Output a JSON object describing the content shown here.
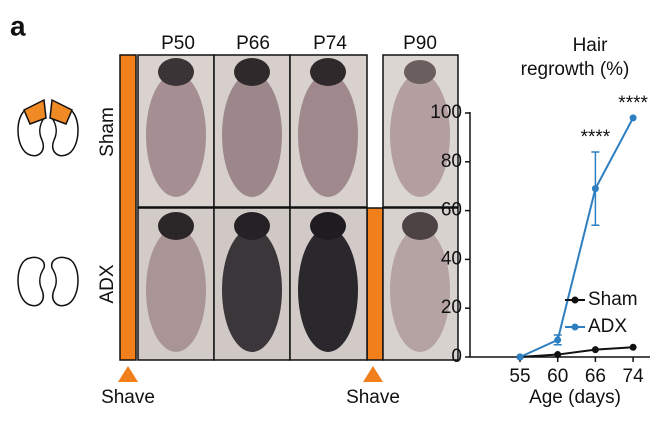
{
  "panel_label": "a",
  "columns": [
    "P50",
    "P66",
    "P74",
    "P90"
  ],
  "rows": [
    "Sham",
    "ADX"
  ],
  "shave_labels": [
    "Shave",
    "Shave"
  ],
  "chart_data": {
    "type": "line",
    "title": [
      "Hair",
      "regrowth (%)"
    ],
    "x_label": "Age (days)",
    "categories": [
      "55",
      "60",
      "66",
      "74"
    ],
    "series": [
      {
        "name": "Sham",
        "color": "#111111",
        "values": [
          0,
          1,
          3,
          4
        ]
      },
      {
        "name": "ADX",
        "color": "#2e7fc1",
        "values": [
          0,
          7,
          69,
          98
        ],
        "errors": [
          null,
          2,
          15,
          null
        ]
      }
    ],
    "ylim": [
      0,
      100
    ],
    "yticks": [
      0,
      20,
      40,
      60,
      80,
      100
    ],
    "annotations": [
      {
        "text": "****",
        "category": "66"
      },
      {
        "text": "****",
        "category": "74"
      }
    ],
    "legend": "lower right"
  }
}
